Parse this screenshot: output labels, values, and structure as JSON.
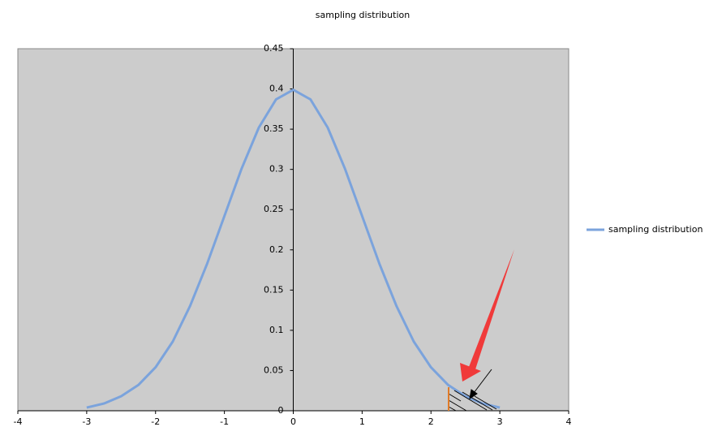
{
  "chart_data": {
    "type": "line",
    "title": "sampling distribution",
    "x": [
      -3,
      -2.75,
      -2.5,
      -2.25,
      -2,
      -1.75,
      -1.5,
      -1.25,
      -1,
      -0.75,
      -0.5,
      -0.25,
      0,
      0.25,
      0.5,
      0.75,
      1,
      1.25,
      1.5,
      1.75,
      2,
      2.25,
      2.5,
      2.75,
      3
    ],
    "series": [
      {
        "name": "sampling distribution",
        "color": "#7ba3dc",
        "values": [
          0.004,
          0.009,
          0.018,
          0.032,
          0.054,
          0.086,
          0.13,
          0.183,
          0.242,
          0.301,
          0.352,
          0.387,
          0.399,
          0.387,
          0.352,
          0.301,
          0.242,
          0.183,
          0.13,
          0.086,
          0.054,
          0.032,
          0.018,
          0.009,
          0.004
        ]
      }
    ],
    "xlim": [
      -4,
      4
    ],
    "ylim": [
      0,
      0.45
    ],
    "xticks": [
      -4,
      -3,
      -2,
      -1,
      0,
      1,
      2,
      3,
      4
    ],
    "yticks": [
      0,
      0.05,
      0.1,
      0.15,
      0.2,
      0.25,
      0.3,
      0.35,
      0.4,
      0.45
    ],
    "legend": "right"
  }
}
